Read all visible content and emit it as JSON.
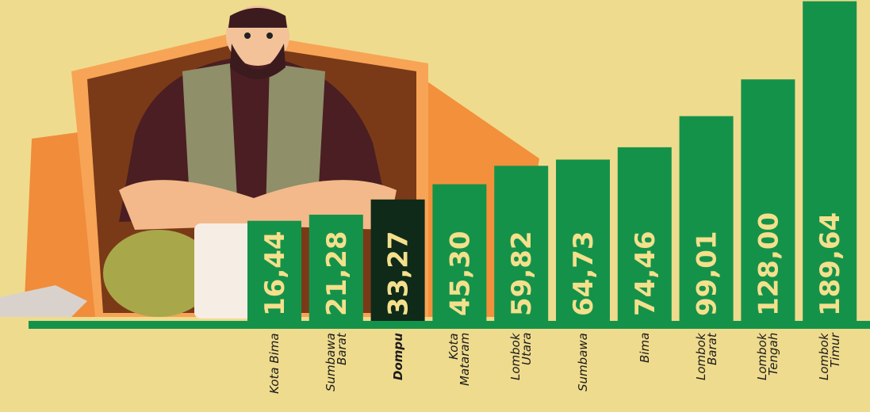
{
  "chart_data": {
    "type": "bar",
    "categories": [
      "Kota Bima",
      "Sumbawa Barat",
      "Dompu",
      "Kota Mataram",
      "Lombok Utara",
      "Sumbawa",
      "Bima",
      "Lombok Barat",
      "Lombok Tengah",
      "Lombok Timur"
    ],
    "values": [
      16.44,
      21.28,
      33.27,
      45.3,
      59.82,
      64.73,
      74.46,
      99.01,
      128.0,
      189.64
    ],
    "value_labels": [
      "16,44",
      "21,28",
      "33,27",
      "45,30",
      "59,82",
      "64,73",
      "74,46",
      "99,01",
      "128,00",
      "189,64"
    ],
    "colors": [
      "#15924a",
      "#15924a",
      "#0f2a18",
      "#15924a",
      "#15924a",
      "#15924a",
      "#15924a",
      "#15924a",
      "#15924a",
      "#15924a"
    ],
    "color": "#15924a"
  }
}
